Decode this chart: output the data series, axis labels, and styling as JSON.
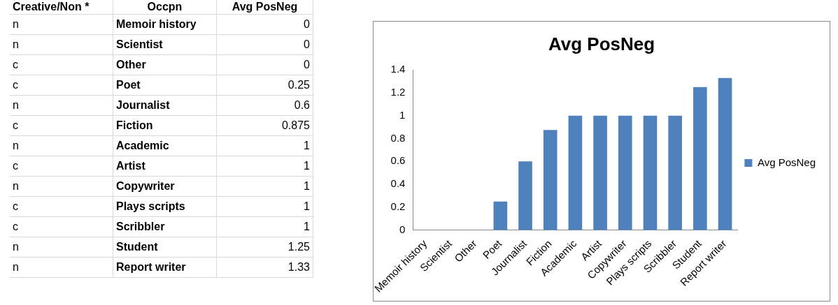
{
  "chart_data": [
    {
      "type": "other",
      "annotations": [
        "Creative/Non *",
        "Occpn",
        "Avg PosNeg",
        "n",
        "Memoir history",
        "0",
        "n",
        "Scientist",
        "0",
        "c",
        "Other",
        "0",
        "c",
        "Poet",
        "0.25",
        "n",
        "Journalist",
        "0.6",
        "c",
        "Fiction",
        "0.875",
        "n",
        "Academic",
        "1",
        "c",
        "Artist",
        "1",
        "n",
        "Copywriter",
        "1",
        "c",
        "Plays scripts",
        "1",
        "c",
        "Scribbler",
        "1",
        "n",
        "Student",
        "1.25",
        "n",
        "Report writer",
        "1.33"
      ]
    },
    {
      "type": "bar",
      "title": "Avg PosNeg",
      "categories": [
        "Memoir history",
        "Scientist",
        "Other",
        "Poet",
        "Journalist",
        "Fiction",
        "Academic",
        "Artist",
        "Copywriter",
        "Plays scripts",
        "Scribbler",
        "Student",
        "Report writer"
      ],
      "series": [
        {
          "name": "Avg PosNeg",
          "color": "#4f81bd",
          "values": [
            0,
            0,
            0,
            0.25,
            0.6,
            0.875,
            1,
            1,
            1,
            1,
            1,
            1.25,
            1.33
          ]
        }
      ],
      "ylim": [
        0,
        1.4
      ],
      "yticks": [
        0,
        0.2,
        0.4,
        0.6,
        0.8,
        1,
        1.2,
        1.4
      ],
      "grid": false,
      "legend": "right"
    }
  ]
}
